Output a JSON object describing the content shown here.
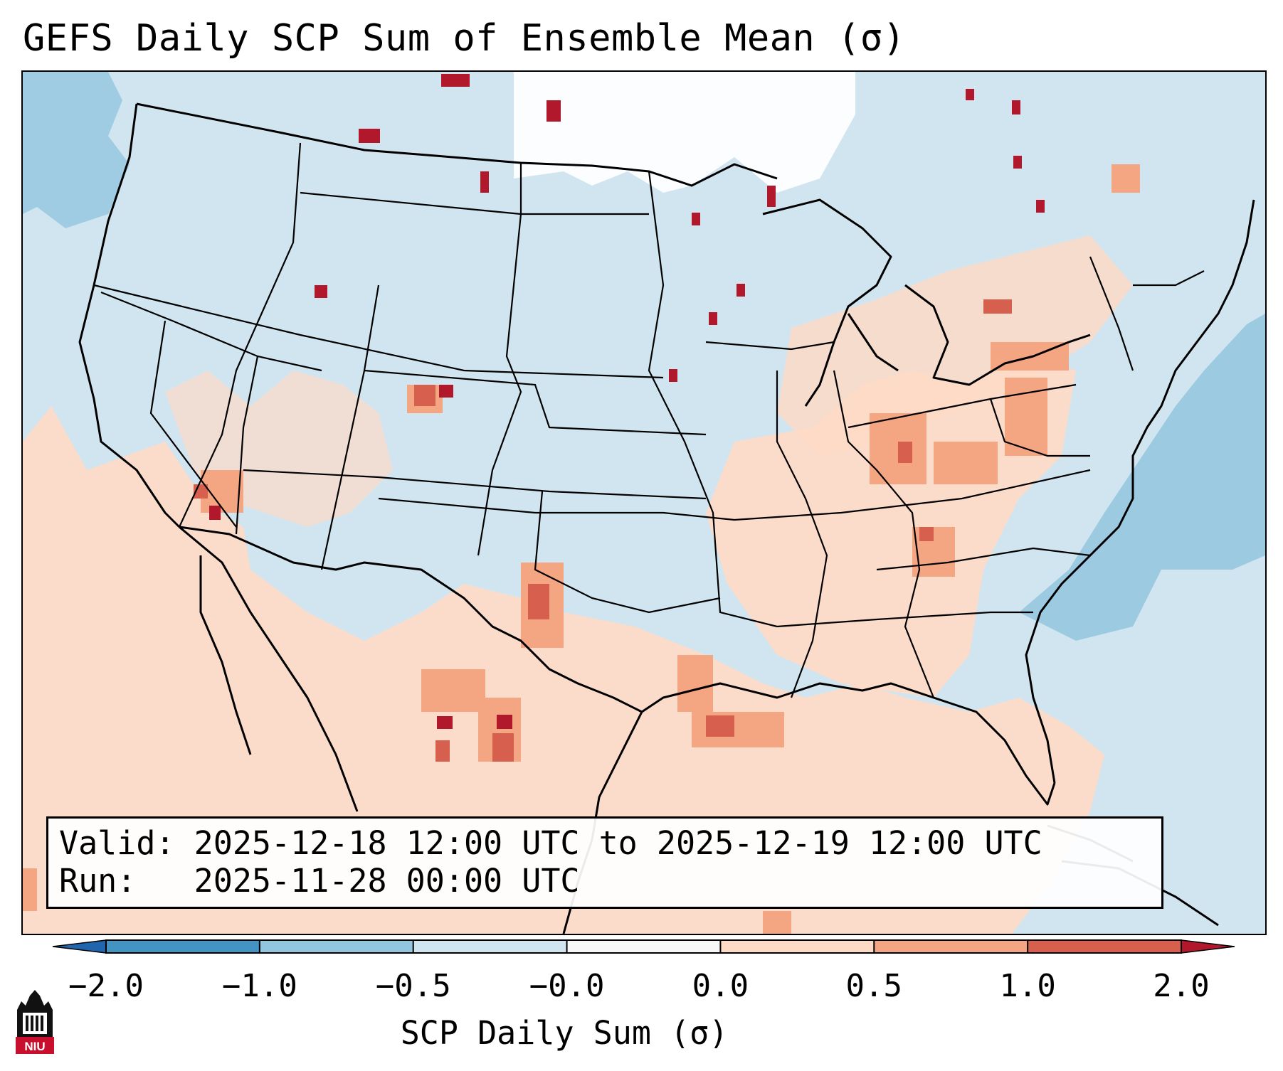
{
  "title": "GEFS Daily SCP Sum of Ensemble Mean (σ)",
  "info": {
    "valid_label": "Valid:",
    "valid_value": "2025-12-18 12:00 UTC to 2025-12-19 12:00 UTC",
    "run_label": "Run:",
    "run_value": "2025-11-28 00:00 UTC"
  },
  "colorbar": {
    "label": "SCP Daily Sum (σ)",
    "ticks": [
      "−2.0",
      "−1.0",
      "−0.5",
      "−0.0",
      "0.0",
      "0.5",
      "1.0",
      "2.0"
    ],
    "colors": [
      "#4393c3",
      "#92c5de",
      "#d1e5f0",
      "#f7f7f7",
      "#fddbc7",
      "#f4a582",
      "#d6604d"
    ],
    "under_color": "#2166ac",
    "over_color": "#b2182b"
  },
  "logo": {
    "text": "NIU",
    "name": "Northern Illinois University"
  }
}
